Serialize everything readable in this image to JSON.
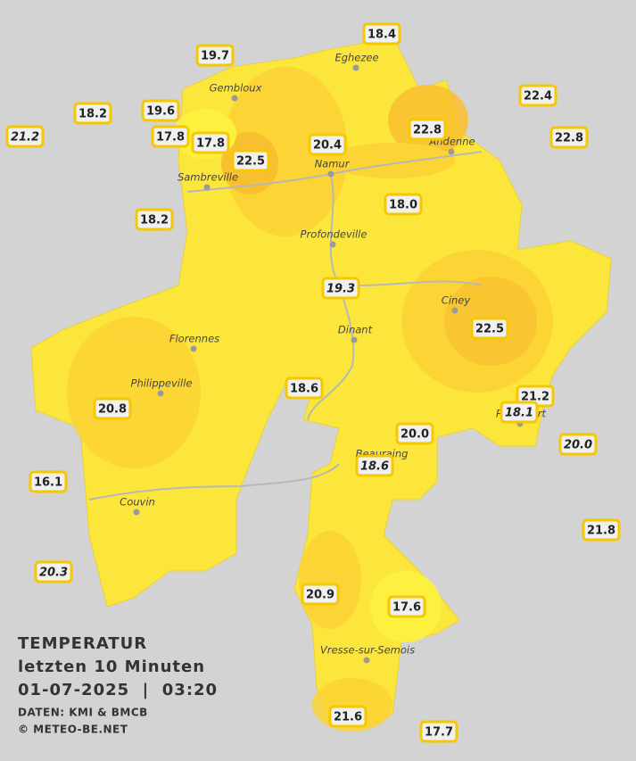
{
  "towns": [
    "Eghezee",
    "Gembloux",
    "Andenne",
    "Namur",
    "Sambreville",
    "Profondeville",
    "Ciney",
    "Dinant",
    "Florennes",
    "Philippeville",
    "Rochefort",
    "Beauraing",
    "Couvin",
    "Vresse-sur-Semois"
  ],
  "stations": [
    {
      "label": "18.4",
      "italic": false
    },
    {
      "label": "19.7",
      "italic": false
    },
    {
      "label": "18.2",
      "italic": false
    },
    {
      "label": "19.6",
      "italic": false
    },
    {
      "label": "21.2",
      "italic": true
    },
    {
      "label": "17.8",
      "italic": false
    },
    {
      "label": "17.8",
      "italic": false
    },
    {
      "label": "22.5",
      "italic": false
    },
    {
      "label": "20.4",
      "italic": false
    },
    {
      "label": "22.8",
      "italic": false
    },
    {
      "label": "22.4",
      "italic": false
    },
    {
      "label": "22.8",
      "italic": false
    },
    {
      "label": "18.0",
      "italic": false
    },
    {
      "label": "18.2",
      "italic": false
    },
    {
      "label": "19.3",
      "italic": true
    },
    {
      "label": "22.5",
      "italic": false
    },
    {
      "label": "18.6",
      "italic": false
    },
    {
      "label": "20.8",
      "italic": false
    },
    {
      "label": "21.2",
      "italic": false
    },
    {
      "label": "18.1",
      "italic": true
    },
    {
      "label": "20.0",
      "italic": false
    },
    {
      "label": "20.0",
      "italic": true
    },
    {
      "label": "18.6",
      "italic": true
    },
    {
      "label": "16.1",
      "italic": false
    },
    {
      "label": "21.8",
      "italic": false
    },
    {
      "label": "20.3",
      "italic": true
    },
    {
      "label": "20.9",
      "italic": false
    },
    {
      "label": "17.6",
      "italic": false
    },
    {
      "label": "21.6",
      "italic": false
    },
    {
      "label": "17.7",
      "italic": false
    }
  ],
  "legend": {
    "title": "TEMPERATUR",
    "period": "letzten 10 Minuten",
    "datetime": "01-07-2025  |  03:20",
    "source": "DATEN: KMI & BMCB",
    "copyright": "© METEO-BE.NET"
  }
}
